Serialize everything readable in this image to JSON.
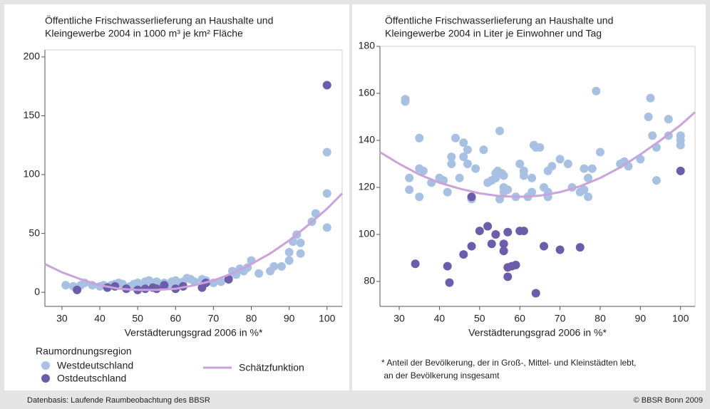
{
  "chart_data": [
    {
      "type": "scatter",
      "title_lines": [
        "Öffentliche Frischwasserlieferung an Haushalte und",
        "Kleingewerbe 2004 in 1000 m³ je km² Fläche"
      ],
      "x_label": "Verstädterungsgrad 2006 in %*",
      "legend_title": "Raumordnungsregion",
      "xlim": [
        25.5,
        104
      ],
      "ylim": [
        -12,
        206
      ],
      "xticks": [
        30,
        40,
        50,
        60,
        70,
        80,
        90,
        100
      ],
      "yticks": [
        0,
        50,
        100,
        150,
        200
      ],
      "series": [
        {
          "name": "Westdeutschland",
          "color": "#a8c0e2",
          "draw": "points",
          "x": [
            31,
            33,
            35,
            36,
            38,
            40,
            41,
            43,
            44,
            45,
            46,
            48,
            49,
            50,
            51,
            52,
            53,
            54,
            55,
            56,
            57,
            58,
            59,
            60,
            61,
            62,
            63,
            64,
            65,
            67,
            68,
            70,
            72,
            74,
            75,
            76,
            77,
            78,
            79,
            80,
            82,
            85,
            86,
            88,
            90,
            90,
            91,
            92,
            93,
            93,
            96,
            97,
            100,
            100,
            100
          ],
          "values": [
            6,
            5,
            6,
            8,
            6,
            5,
            6,
            6,
            7,
            8,
            7,
            5,
            7,
            8,
            6,
            9,
            10,
            8,
            9,
            7,
            8,
            6,
            9,
            10,
            8,
            9,
            12,
            11,
            9,
            11,
            10,
            8,
            9,
            12,
            18,
            15,
            20,
            18,
            21,
            27,
            16,
            18,
            22,
            22,
            27,
            34,
            43,
            49,
            42,
            33,
            60,
            67,
            55,
            84,
            119
          ]
        },
        {
          "name": "Ostdeutschland",
          "color": "#6b5daa",
          "draw": "points",
          "x": [
            34,
            42,
            44,
            47,
            50,
            52,
            54,
            55,
            57,
            60,
            62,
            67,
            68,
            74,
            100
          ],
          "values": [
            2,
            4,
            5,
            3,
            2,
            3,
            4,
            3,
            6,
            3,
            5,
            4,
            8,
            11,
            176
          ]
        },
        {
          "name": "Schätzfunktion",
          "color": "#c9a3d9",
          "draw": "line",
          "x": [
            25.5,
            30,
            35,
            40,
            45,
            50,
            55,
            60,
            65,
            70,
            75,
            80,
            85,
            90,
            95,
            100,
            104
          ],
          "values": [
            24,
            17,
            11,
            6,
            3,
            2,
            2,
            3,
            6,
            10,
            16,
            24,
            33,
            44,
            57,
            71,
            84
          ]
        }
      ]
    },
    {
      "type": "scatter",
      "title_lines": [
        "Öffentliche Frischwasserlieferung an Haushalte und",
        "Kleingewerbe 2004 in Liter je Einwohner und Tag"
      ],
      "x_label": "Verstädterungsgrad 2006 in %*",
      "xlim": [
        25.2,
        103.6
      ],
      "ylim": [
        69.4,
        180
      ],
      "xticks": [
        30,
        40,
        50,
        60,
        70,
        80,
        90,
        100
      ],
      "yticks": [
        80,
        100,
        120,
        140,
        160,
        180
      ],
      "series": [
        {
          "name": "Westdeutschland",
          "color": "#a8c0e2",
          "draw": "points",
          "x": [
            31.5,
            31.5,
            32.5,
            32.5,
            35,
            35,
            35,
            36,
            38,
            40,
            41,
            42,
            43,
            43,
            44,
            45,
            46,
            46,
            47,
            47,
            48,
            49,
            51,
            52,
            53,
            54,
            54,
            54.5,
            55,
            55,
            55.5,
            56,
            56,
            56,
            57,
            59,
            60,
            61,
            61,
            62,
            63,
            63,
            63.5,
            64,
            65,
            66,
            67,
            67,
            67,
            68,
            70,
            72,
            73,
            75,
            76,
            76,
            77,
            77,
            78,
            79,
            80,
            85,
            86,
            87,
            90,
            92,
            92.5,
            93,
            94,
            94,
            97,
            97,
            100,
            100,
            100
          ],
          "values": [
            157.5,
            156.5,
            124,
            119,
            141,
            128,
            116,
            127,
            122,
            124,
            123,
            118,
            133,
            130,
            141,
            124,
            133,
            139,
            136,
            130,
            115,
            128,
            136,
            122,
            123,
            124,
            126,
            127,
            144,
            115,
            126,
            120,
            118,
            125,
            119,
            116,
            130,
            125,
            127,
            116,
            118,
            124,
            138,
            137,
            137,
            120,
            127,
            118,
            116,
            129,
            132,
            130,
            120,
            118,
            128,
            119,
            116,
            124,
            128,
            161,
            135,
            130,
            131,
            129,
            132,
            150,
            158,
            142,
            137,
            123,
            149,
            142,
            142,
            140,
            138
          ]
        },
        {
          "name": "Ostdeutschland",
          "color": "#6b5daa",
          "draw": "points",
          "x": [
            34,
            42,
            42.5,
            46,
            48,
            48,
            50,
            52,
            53,
            54,
            56,
            56,
            57,
            57,
            57,
            58,
            59,
            60,
            61,
            64,
            66,
            70,
            75,
            100
          ],
          "values": [
            87.5,
            86.5,
            79.5,
            91.5,
            116,
            95,
            101.5,
            103.5,
            96,
            100,
            93,
            96,
            101,
            86,
            82,
            86.5,
            87,
            101.5,
            101.5,
            75,
            95,
            93.5,
            94.5,
            127
          ]
        },
        {
          "name": "Schätzfunktion",
          "color": "#c9a3d9",
          "draw": "line",
          "x": [
            25.2,
            30,
            35,
            40,
            45,
            50,
            55,
            60,
            65,
            70,
            75,
            80,
            85,
            90,
            95,
            100,
            103.6
          ],
          "values": [
            135,
            130,
            125.5,
            122,
            119.5,
            117.5,
            116.3,
            116,
            116.5,
            118,
            120.5,
            124,
            128.5,
            134,
            140,
            146.5,
            152
          ]
        }
      ]
    }
  ],
  "footnote": [
    "* Anteil der Bevölkerung, der in Groß-, Mittel- und Kleinstädten lebt,",
    " an der Bevölkerung insgesamt"
  ],
  "source": "Datenbasis: Laufende Raumbeobachtung des BBSR",
  "copyright": "© BBSR Bonn 2009"
}
